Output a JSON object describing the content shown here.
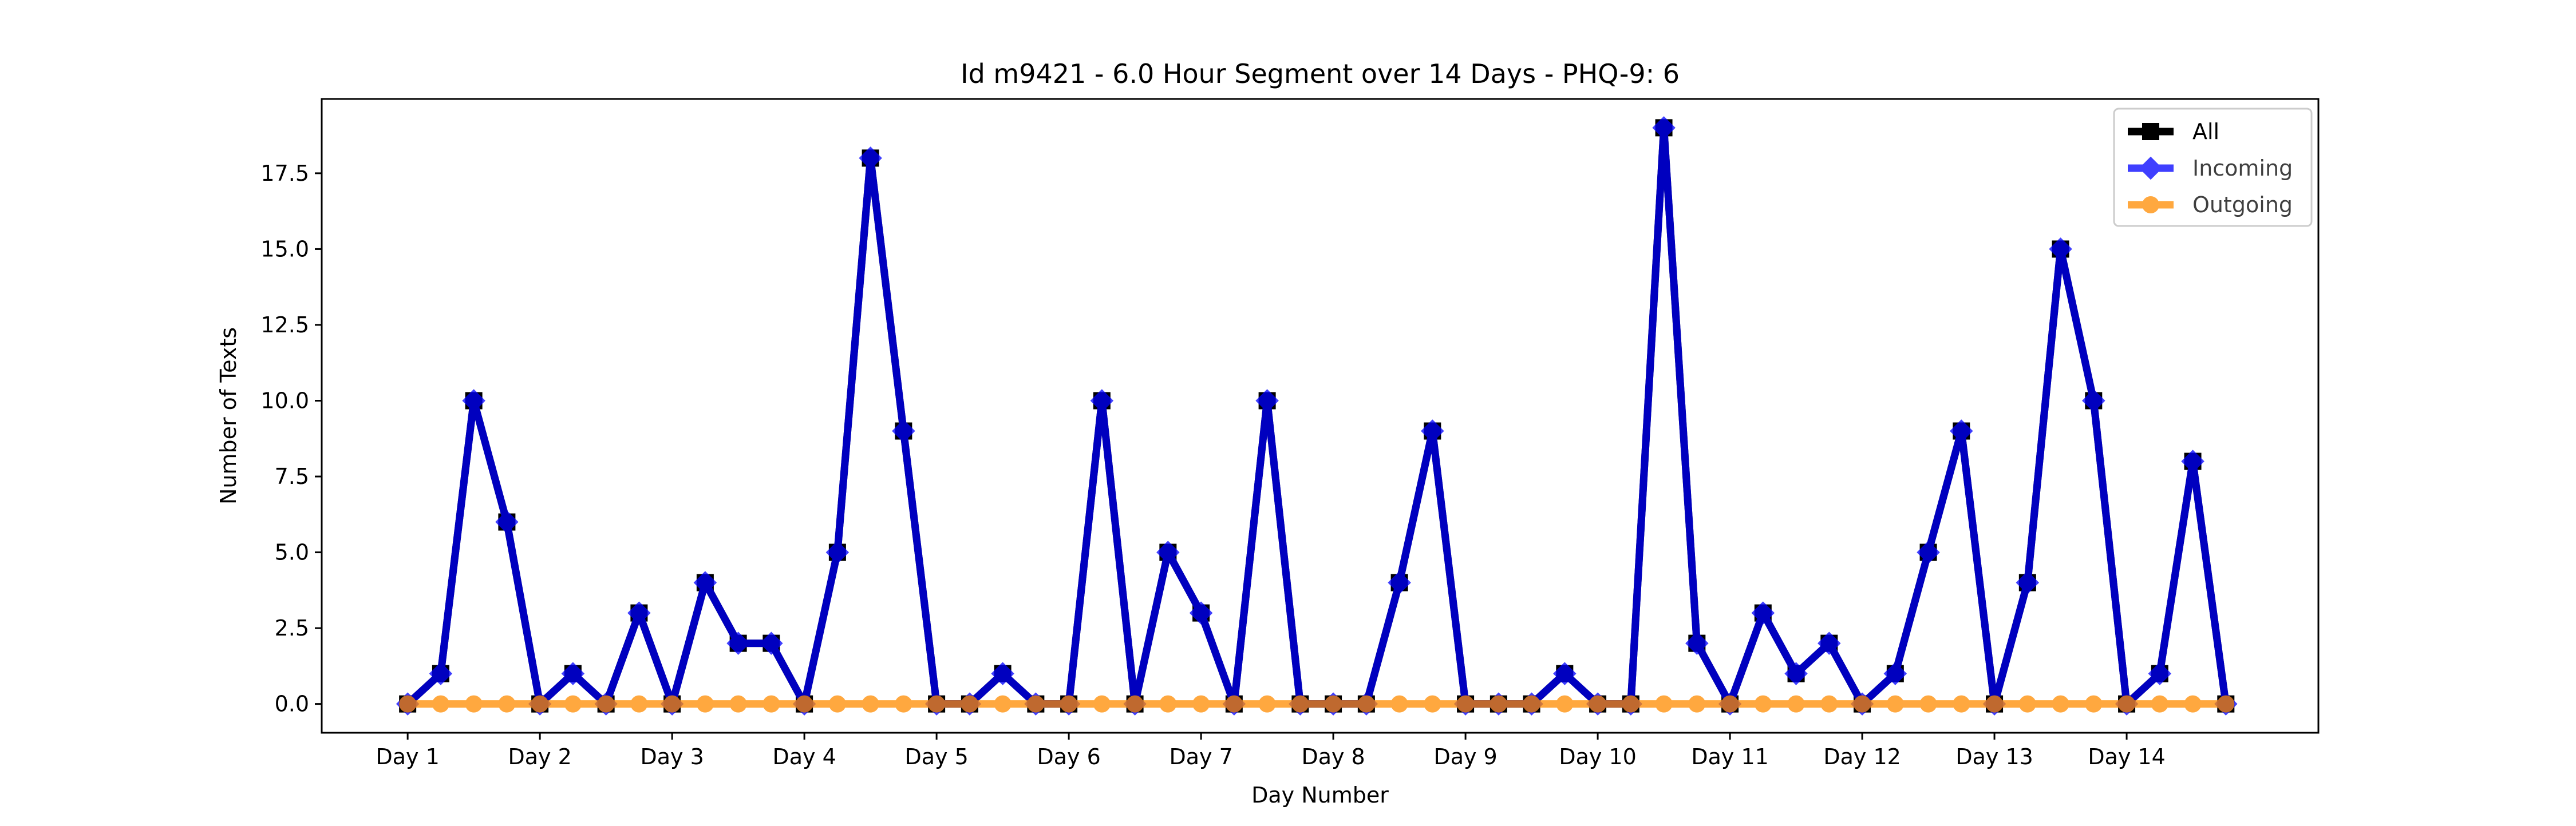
{
  "chart_data": {
    "type": "line",
    "title": "Id m9421 - 6.0 Hour Segment over 14 Days - PHQ-9: 6",
    "xlabel": "Day Number",
    "ylabel": "Number of Texts",
    "x_tick_labels": [
      "Day 1",
      "Day 2",
      "Day 3",
      "Day 4",
      "Day 5",
      "Day 6",
      "Day 7",
      "Day 8",
      "Day 9",
      "Day 10",
      "Day 11",
      "Day 12",
      "Day 13",
      "Day 14"
    ],
    "x_tick_positions": [
      0,
      4,
      8,
      12,
      16,
      20,
      24,
      28,
      32,
      36,
      40,
      44,
      48,
      52
    ],
    "y_ticks": [
      0.0,
      2.5,
      5.0,
      7.5,
      10.0,
      12.5,
      15.0,
      17.5
    ],
    "y_tick_labels": [
      "0.0",
      "2.5",
      "5.0",
      "7.5",
      "10.0",
      "12.5",
      "15.0",
      "17.5"
    ],
    "xlim": [
      -2.6,
      57.8
    ],
    "ylim": [
      -0.95,
      19.95
    ],
    "grid": false,
    "legend_position": "top-right",
    "x": [
      0,
      1,
      2,
      3,
      4,
      5,
      6,
      7,
      8,
      9,
      10,
      11,
      12,
      13,
      14,
      15,
      16,
      17,
      18,
      19,
      20,
      21,
      22,
      23,
      24,
      25,
      26,
      27,
      28,
      29,
      30,
      31,
      32,
      33,
      34,
      35,
      36,
      37,
      38,
      39,
      40,
      41,
      42,
      43,
      44,
      45,
      46,
      47,
      48,
      49,
      50,
      51,
      52,
      53,
      54,
      55
    ],
    "series": [
      {
        "name": "All",
        "color": "#000000",
        "marker": "square",
        "values": [
          0,
          1,
          10,
          6,
          0,
          1,
          0,
          3,
          0,
          4,
          2,
          2,
          0,
          5,
          18,
          9,
          0,
          0,
          1,
          0,
          0,
          10,
          0,
          5,
          3,
          0,
          10,
          0,
          0,
          0,
          4,
          9,
          0,
          0,
          0,
          1,
          0,
          0,
          19,
          2,
          0,
          3,
          1,
          2,
          0,
          1,
          5,
          9,
          0,
          4,
          15,
          10,
          0,
          1,
          8,
          0
        ]
      },
      {
        "name": "Incoming",
        "color": "#0000ff",
        "marker": "diamond",
        "values": [
          0,
          1,
          10,
          6,
          0,
          1,
          0,
          3,
          0,
          4,
          2,
          2,
          0,
          5,
          18,
          9,
          0,
          0,
          1,
          0,
          0,
          10,
          0,
          5,
          3,
          0,
          10,
          0,
          0,
          0,
          4,
          9,
          0,
          0,
          0,
          1,
          0,
          0,
          19,
          2,
          0,
          3,
          1,
          2,
          0,
          1,
          5,
          9,
          0,
          4,
          15,
          10,
          0,
          1,
          8,
          0
        ]
      },
      {
        "name": "Outgoing",
        "color": "#ff8c00",
        "marker": "circle",
        "values": [
          0,
          0,
          0,
          0,
          0,
          0,
          0,
          0,
          0,
          0,
          0,
          0,
          0,
          0,
          0,
          0,
          0,
          0,
          0,
          0,
          0,
          0,
          0,
          0,
          0,
          0,
          0,
          0,
          0,
          0,
          0,
          0,
          0,
          0,
          0,
          0,
          0,
          0,
          0,
          0,
          0,
          0,
          0,
          0,
          0,
          0,
          0,
          0,
          0,
          0,
          0,
          0,
          0,
          0,
          0,
          0
        ]
      }
    ]
  }
}
